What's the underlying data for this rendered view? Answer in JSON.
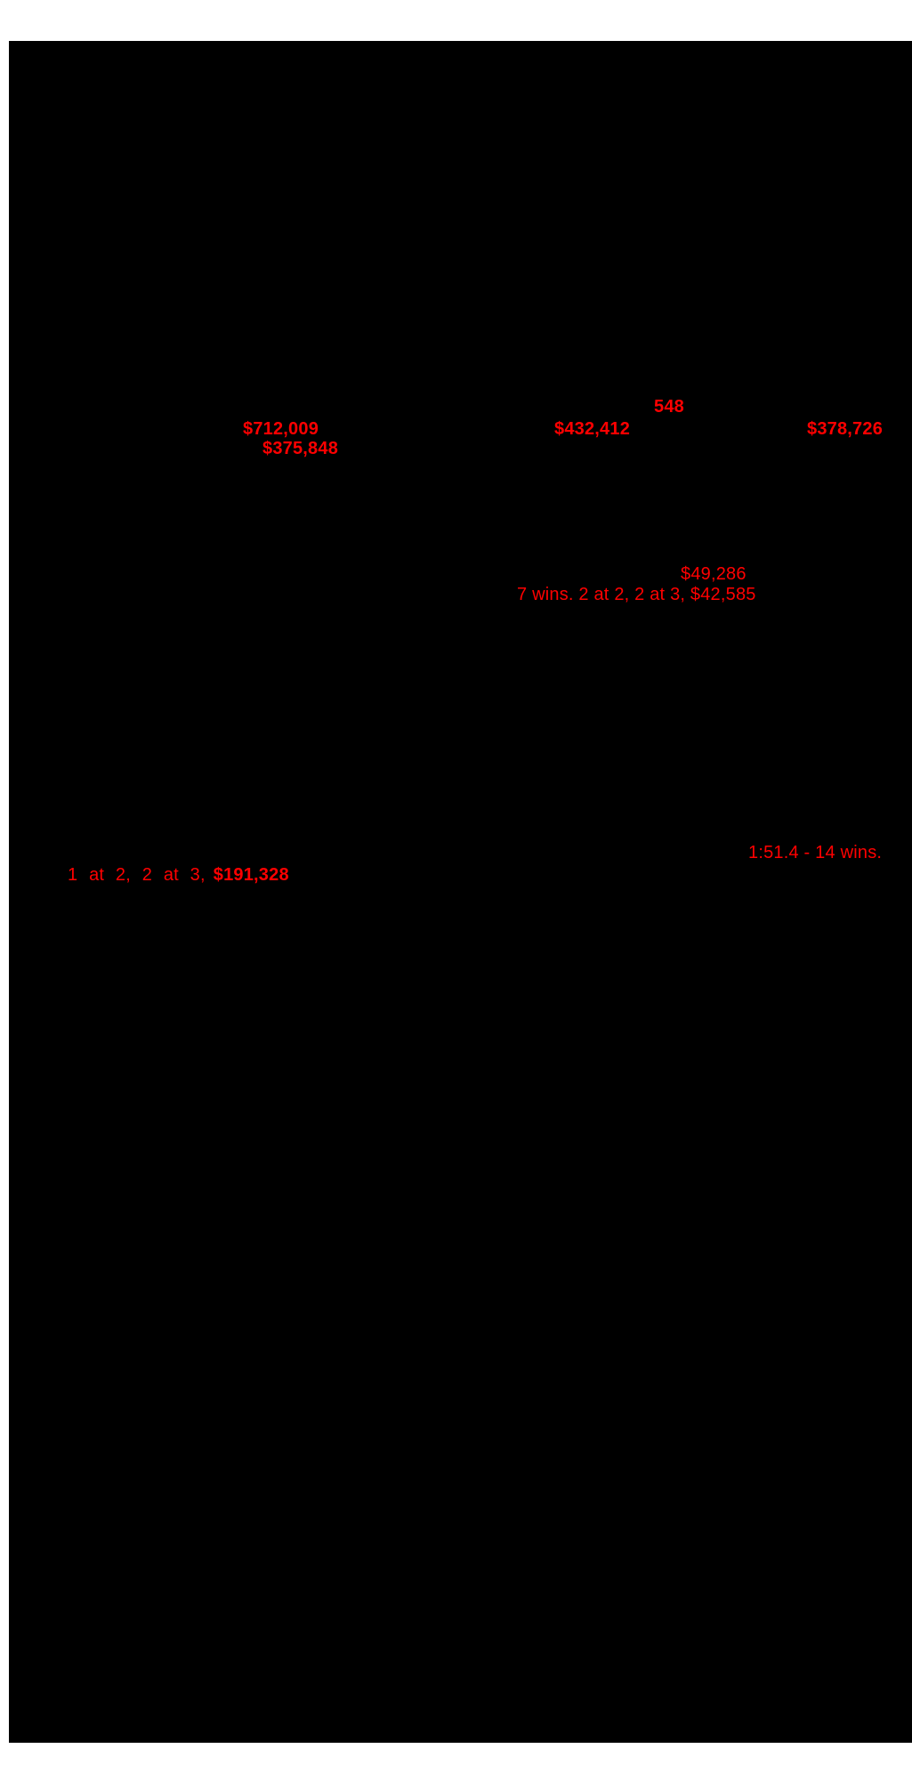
{
  "page": {
    "background_color": "#ffffff",
    "blackout_color": "#000000",
    "accent_color": "#ff0000"
  },
  "annotations": [
    {
      "id": "starts",
      "text": "548"
    },
    {
      "id": "earnings-1",
      "text": "$712,009"
    },
    {
      "id": "earnings-2",
      "text": "$432,412"
    },
    {
      "id": "earnings-3",
      "text": "$378,726"
    },
    {
      "id": "earnings-4",
      "text": "$375,848"
    },
    {
      "id": "earnings-5",
      "text": "$49,286"
    },
    {
      "id": "race-summary-1",
      "text": "7 wins. 2 at 2, 2 at 3, $42,585"
    },
    {
      "id": "record-line",
      "text": "1:51.4 - 14 wins."
    },
    {
      "id": "race-summary-2",
      "prefix": "1 at 2, 2 at 3,",
      "amount": "$191,328"
    }
  ]
}
